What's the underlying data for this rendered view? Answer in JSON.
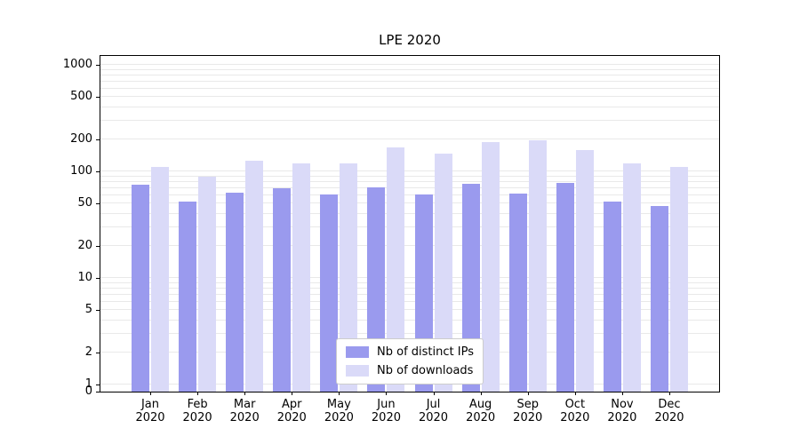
{
  "figure": {
    "title": "LPE 2020"
  },
  "chart_data": {
    "type": "bar",
    "title": "LPE 2020",
    "yscale": "symlog",
    "grid": true,
    "legend_position": "lower center",
    "xlabel": "",
    "ylabel": "",
    "ylim": [
      0,
      1200
    ],
    "yticks": [
      0,
      1,
      2,
      5,
      10,
      20,
      50,
      100,
      200,
      500,
      1000
    ],
    "categories": [
      "Jan 2020",
      "Feb 2020",
      "Mar 2020",
      "Apr 2020",
      "May 2020",
      "Jun 2020",
      "Jul 2020",
      "Aug 2020",
      "Sep 2020",
      "Oct 2020",
      "Nov 2020",
      "Dec 2020"
    ],
    "series": [
      {
        "name": "Nb of distinct IPs",
        "color": "#9a9aee",
        "values": [
          75,
          52,
          63,
          70,
          61,
          71,
          61,
          76,
          62,
          78,
          52,
          47
        ]
      },
      {
        "name": "Nb of downloads",
        "color": "#dadaf8",
        "values": [
          110,
          90,
          127,
          120,
          119,
          167,
          148,
          189,
          196,
          158,
          120,
          111
        ]
      }
    ],
    "grid_color": "#e9e9e9",
    "axis_color": "#000000"
  }
}
